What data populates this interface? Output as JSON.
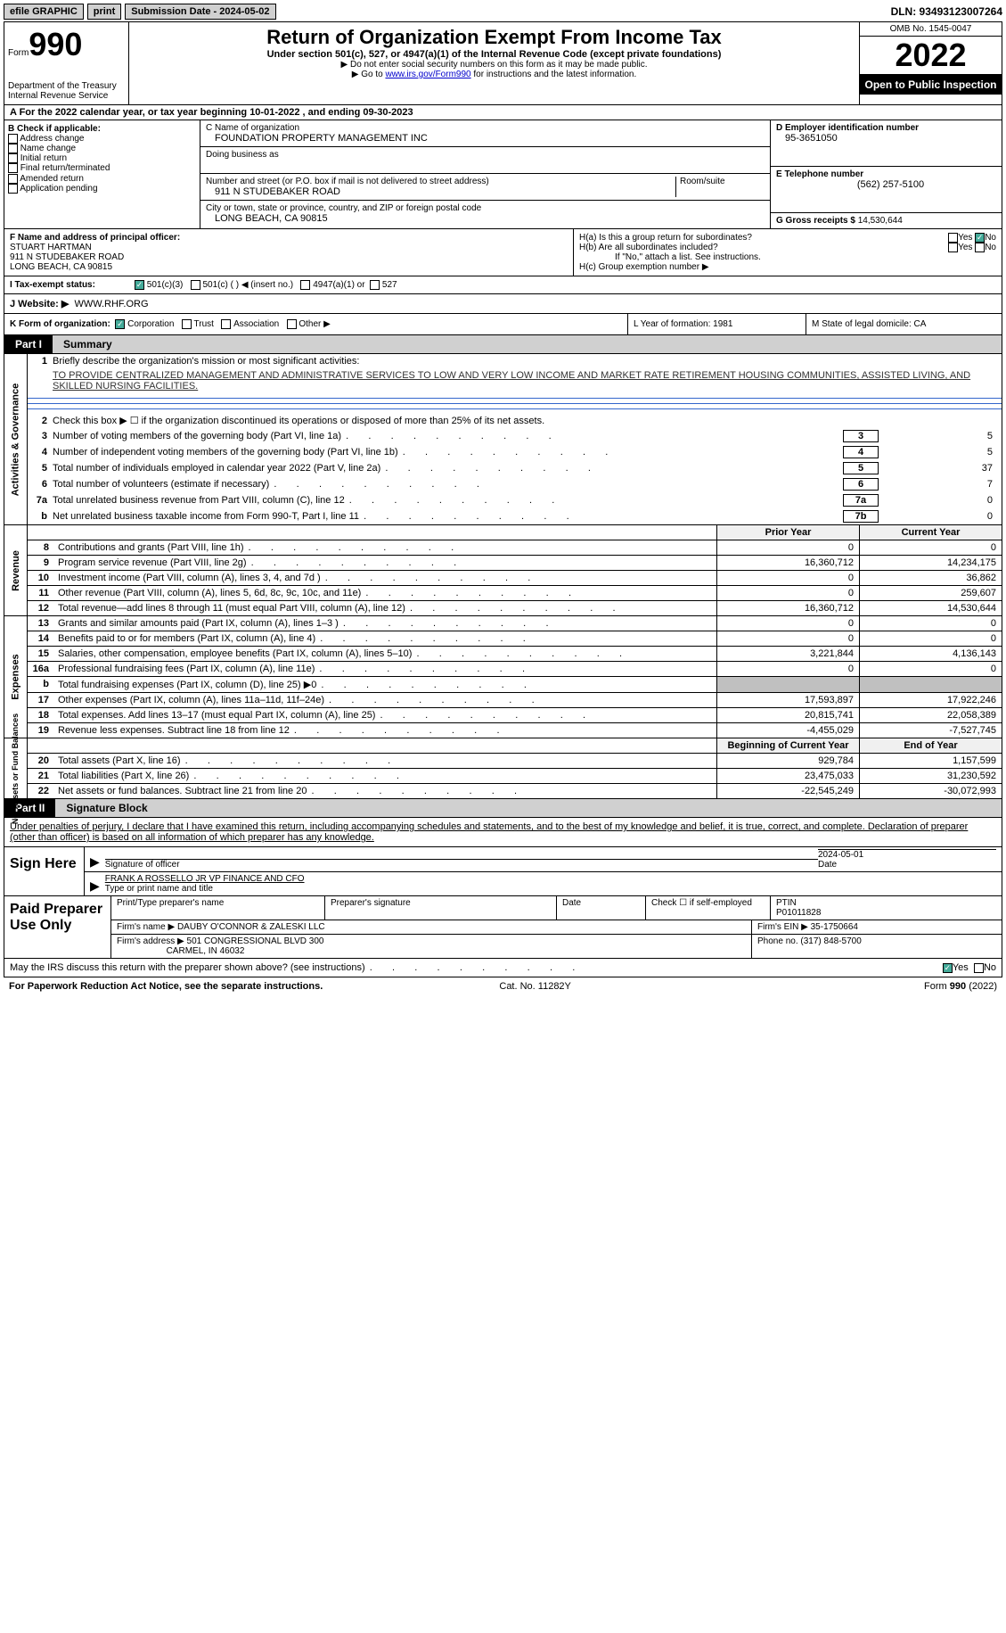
{
  "topbar": {
    "efile": "efile GRAPHIC",
    "print": "print",
    "submission": "Submission Date - 2024-05-02",
    "dln": "DLN: 93493123007264"
  },
  "header": {
    "form_label": "Form",
    "form_num": "990",
    "dept": "Department of the Treasury",
    "irs": "Internal Revenue Service",
    "title": "Return of Organization Exempt From Income Tax",
    "sub": "Under section 501(c), 527, or 4947(a)(1) of the Internal Revenue Code (except private foundations)",
    "note1": "▶ Do not enter social security numbers on this form as it may be made public.",
    "note2_pre": "▶ Go to ",
    "note2_link": "www.irs.gov/Form990",
    "note2_post": " for instructions and the latest information.",
    "omb": "OMB No. 1545-0047",
    "year": "2022",
    "open": "Open to Public Inspection"
  },
  "row_a": {
    "text": "A For the 2022 calendar year, or tax year beginning 10-01-2022    , and ending 09-30-2023"
  },
  "col_b": {
    "hdr": "B Check if applicable:",
    "items": [
      "Address change",
      "Name change",
      "Initial return",
      "Final return/terminated",
      "Amended return",
      "Application pending"
    ]
  },
  "col_c": {
    "name_lbl": "C Name of organization",
    "name": "FOUNDATION PROPERTY MANAGEMENT INC",
    "dba_lbl": "Doing business as",
    "addr_lbl": "Number and street (or P.O. box if mail is not delivered to street address)",
    "room_lbl": "Room/suite",
    "addr": "911 N STUDEBAKER ROAD",
    "city_lbl": "City or town, state or province, country, and ZIP or foreign postal code",
    "city": "LONG BEACH, CA  90815"
  },
  "col_d": {
    "ein_lbl": "D Employer identification number",
    "ein": "95-3651050",
    "tel_lbl": "E Telephone number",
    "tel": "(562) 257-5100",
    "gross_lbl": "G Gross receipts $",
    "gross": "14,530,644"
  },
  "col_f": {
    "lbl": "F Name and address of principal officer:",
    "name": "STUART HARTMAN",
    "addr1": "911 N STUDEBAKER ROAD",
    "addr2": "LONG BEACH, CA  90815"
  },
  "col_h": {
    "ha": "H(a)  Is this a group return for subordinates?",
    "hb": "H(b)  Are all subordinates included?",
    "hb_note": "If \"No,\" attach a list. See instructions.",
    "hc": "H(c)  Group exemption number ▶",
    "yes": "Yes",
    "no": "No"
  },
  "status": {
    "lbl": "I   Tax-exempt status:",
    "o1": "501(c)(3)",
    "o2": "501(c) (   ) ◀ (insert no.)",
    "o3": "4947(a)(1) or",
    "o4": "527"
  },
  "website": {
    "lbl": "J   Website: ▶",
    "val": "WWW.RHF.ORG"
  },
  "k_row": {
    "lbl": "K Form of organization:",
    "o1": "Corporation",
    "o2": "Trust",
    "o3": "Association",
    "o4": "Other ▶",
    "l": "L Year of formation: 1981",
    "m": "M State of legal domicile: CA"
  },
  "part1": {
    "hdr": "Part I",
    "title": "Summary"
  },
  "activities": {
    "label": "Activities & Governance",
    "l1_lbl": "Briefly describe the organization's mission or most significant activities:",
    "l1_txt": "TO PROVIDE CENTRALIZED MANAGEMENT AND ADMINISTRATIVE SERVICES TO LOW AND VERY LOW INCOME AND MARKET RATE RETIREMENT HOUSING COMMUNITIES, ASSISTED LIVING, AND SKILLED NURSING FACILITIES.",
    "l2": "Check this box ▶ ☐ if the organization discontinued its operations or disposed of more than 25% of its net assets.",
    "rows": [
      {
        "n": "3",
        "t": "Number of voting members of the governing body (Part VI, line 1a)",
        "b": "3",
        "v": "5"
      },
      {
        "n": "4",
        "t": "Number of independent voting members of the governing body (Part VI, line 1b)",
        "b": "4",
        "v": "5"
      },
      {
        "n": "5",
        "t": "Total number of individuals employed in calendar year 2022 (Part V, line 2a)",
        "b": "5",
        "v": "37"
      },
      {
        "n": "6",
        "t": "Total number of volunteers (estimate if necessary)",
        "b": "6",
        "v": "7"
      },
      {
        "n": "7a",
        "t": "Total unrelated business revenue from Part VIII, column (C), line 12",
        "b": "7a",
        "v": "0"
      },
      {
        "n": "b",
        "t": "Net unrelated business taxable income from Form 990-T, Part I, line 11",
        "b": "7b",
        "v": "0"
      }
    ]
  },
  "revenue": {
    "label": "Revenue",
    "hdr_prior": "Prior Year",
    "hdr_curr": "Current Year",
    "rows": [
      {
        "n": "8",
        "t": "Contributions and grants (Part VIII, line 1h)",
        "p": "0",
        "c": "0"
      },
      {
        "n": "9",
        "t": "Program service revenue (Part VIII, line 2g)",
        "p": "16,360,712",
        "c": "14,234,175"
      },
      {
        "n": "10",
        "t": "Investment income (Part VIII, column (A), lines 3, 4, and 7d )",
        "p": "0",
        "c": "36,862"
      },
      {
        "n": "11",
        "t": "Other revenue (Part VIII, column (A), lines 5, 6d, 8c, 9c, 10c, and 11e)",
        "p": "0",
        "c": "259,607"
      },
      {
        "n": "12",
        "t": "Total revenue—add lines 8 through 11 (must equal Part VIII, column (A), line 12)",
        "p": "16,360,712",
        "c": "14,530,644"
      }
    ]
  },
  "expenses": {
    "label": "Expenses",
    "rows": [
      {
        "n": "13",
        "t": "Grants and similar amounts paid (Part IX, column (A), lines 1–3 )",
        "p": "0",
        "c": "0"
      },
      {
        "n": "14",
        "t": "Benefits paid to or for members (Part IX, column (A), line 4)",
        "p": "0",
        "c": "0"
      },
      {
        "n": "15",
        "t": "Salaries, other compensation, employee benefits (Part IX, column (A), lines 5–10)",
        "p": "3,221,844",
        "c": "4,136,143"
      },
      {
        "n": "16a",
        "t": "Professional fundraising fees (Part IX, column (A), line 11e)",
        "p": "0",
        "c": "0"
      },
      {
        "n": "b",
        "t": "Total fundraising expenses (Part IX, column (D), line 25) ▶0",
        "p": "",
        "c": "",
        "shade": true
      },
      {
        "n": "17",
        "t": "Other expenses (Part IX, column (A), lines 11a–11d, 11f–24e)",
        "p": "17,593,897",
        "c": "17,922,246"
      },
      {
        "n": "18",
        "t": "Total expenses. Add lines 13–17 (must equal Part IX, column (A), line 25)",
        "p": "20,815,741",
        "c": "22,058,389"
      },
      {
        "n": "19",
        "t": "Revenue less expenses. Subtract line 18 from line 12",
        "p": "-4,455,029",
        "c": "-7,527,745"
      }
    ]
  },
  "netassets": {
    "label": "Net Assets or Fund Balances",
    "hdr_beg": "Beginning of Current Year",
    "hdr_end": "End of Year",
    "rows": [
      {
        "n": "20",
        "t": "Total assets (Part X, line 16)",
        "p": "929,784",
        "c": "1,157,599"
      },
      {
        "n": "21",
        "t": "Total liabilities (Part X, line 26)",
        "p": "23,475,033",
        "c": "31,230,592"
      },
      {
        "n": "22",
        "t": "Net assets or fund balances. Subtract line 21 from line 20",
        "p": "-22,545,249",
        "c": "-30,072,993"
      }
    ]
  },
  "part2": {
    "hdr": "Part II",
    "title": "Signature Block",
    "penalty": "Under penalties of perjury, I declare that I have examined this return, including accompanying schedules and statements, and to the best of my knowledge and belief, it is true, correct, and complete. Declaration of preparer (other than officer) is based on all information of which preparer has any knowledge."
  },
  "sign": {
    "lbl": "Sign Here",
    "sig_lbl": "Signature of officer",
    "date": "2024-05-01",
    "date_lbl": "Date",
    "name": "FRANK A ROSSELLO JR VP FINANCE AND CFO",
    "name_lbl": "Type or print name and title"
  },
  "prep": {
    "lbl": "Paid Preparer Use Only",
    "name_lbl": "Print/Type preparer's name",
    "sig_lbl": "Preparer's signature",
    "date_lbl": "Date",
    "check_lbl": "Check ☐ if self-employed",
    "ptin_lbl": "PTIN",
    "ptin": "P01011828",
    "firm_lbl": "Firm's name    ▶",
    "firm": "DAUBY O'CONNOR & ZALESKI LLC",
    "ein_lbl": "Firm's EIN ▶",
    "ein": "35-1750664",
    "addr_lbl": "Firm's address ▶",
    "addr": "501 CONGRESSIONAL BLVD 300",
    "addr2": "CARMEL, IN  46032",
    "phone_lbl": "Phone no.",
    "phone": "(317) 848-5700"
  },
  "discuss": {
    "txt": "May the IRS discuss this return with the preparer shown above? (see instructions)",
    "yes": "Yes",
    "no": "No"
  },
  "footer": {
    "left": "For Paperwork Reduction Act Notice, see the separate instructions.",
    "mid": "Cat. No. 11282Y",
    "right": "Form 990 (2022)"
  }
}
